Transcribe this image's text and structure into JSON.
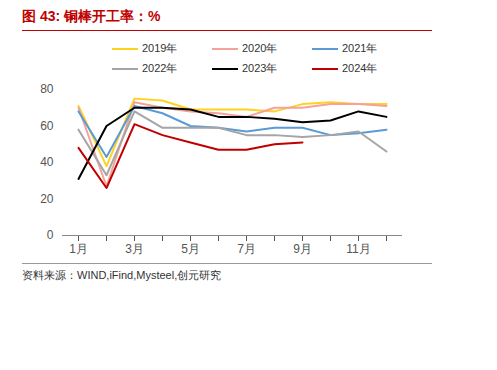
{
  "chart_data": {
    "type": "line",
    "title": "图 43:  铜棒开工率：%",
    "source": "资料来源：WIND,iFind,Mysteel,创元研究",
    "categories": [
      "1月",
      null,
      "3月",
      null,
      "5月",
      null,
      "7月",
      null,
      "9月",
      null,
      "11月",
      null
    ],
    "series": [
      {
        "name": "2019年",
        "color": "#FFD21F",
        "values": [
          71,
          38,
          75,
          74,
          69,
          69,
          69,
          68,
          72,
          73,
          72,
          72
        ]
      },
      {
        "name": "2020年",
        "color": "#F4A29A",
        "values": [
          70,
          27,
          73,
          70,
          68,
          67,
          65,
          70,
          70,
          72,
          72,
          71
        ]
      },
      {
        "name": "2021年",
        "color": "#5B9BD5",
        "values": [
          68,
          43,
          71,
          67,
          60,
          59,
          57,
          59,
          59,
          55,
          56,
          58
        ]
      },
      {
        "name": "2022年",
        "color": "#A5A5A5",
        "values": [
          58,
          33,
          68,
          59,
          59,
          59,
          55,
          55,
          54,
          55,
          57,
          46
        ]
      },
      {
        "name": "2023年",
        "color": "#000000",
        "values": [
          31,
          60,
          70,
          70,
          69,
          65,
          65,
          64,
          62,
          63,
          68,
          65
        ]
      },
      {
        "name": "2024年",
        "color": "#C00000",
        "values": [
          48,
          26,
          61,
          55,
          51,
          47,
          47,
          50,
          51,
          null,
          null,
          null
        ]
      }
    ],
    "ylim": [
      0,
      80
    ],
    "yticks": [
      0,
      20,
      40,
      60,
      80
    ],
    "grid": false,
    "legend": "top"
  }
}
